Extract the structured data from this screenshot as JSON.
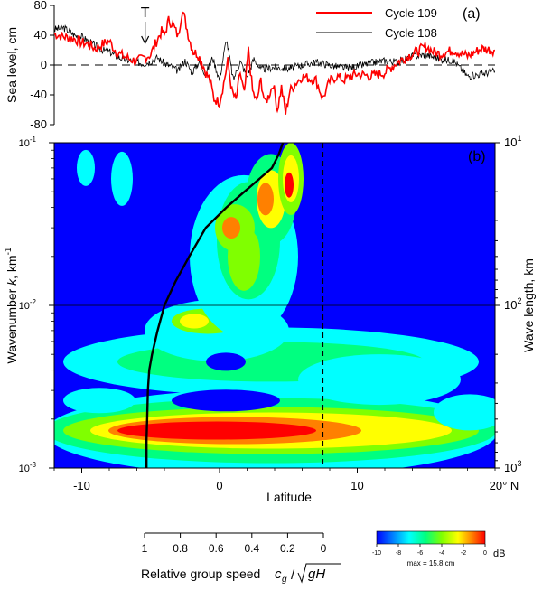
{
  "chart_data": [
    {
      "type": "line",
      "panel_label": "(a)",
      "ylabel": "Sea level, cm",
      "yticks": [
        "80",
        "40",
        "0",
        "-40",
        "-80"
      ],
      "ylim": [
        -80,
        80
      ],
      "xlim": [
        -12,
        20
      ],
      "annotation": "T",
      "annotation_x": -5.4,
      "legend_position": "top-right",
      "series": [
        {
          "name": "Cycle 109",
          "color": "#ff0000",
          "x": [
            -12,
            -11.3,
            -10.5,
            -10,
            -9.5,
            -9,
            -8.5,
            -8,
            -7.5,
            -7,
            -6.5,
            -6,
            -5.5,
            -5,
            -4.5,
            -4.2,
            -4,
            -3.7,
            -3.4,
            -3,
            -2.7,
            -2.5,
            -2.2,
            -1.9,
            -1.6,
            -1.3,
            -1,
            -0.7,
            -0.4,
            0,
            0.3,
            0.6,
            0.9,
            1.2,
            1.5,
            1.8,
            2.1,
            2.4,
            2.7,
            3,
            3.3,
            3.6,
            3.9,
            4.2,
            4.5,
            4.8,
            5.1,
            5.5,
            6,
            6.5,
            7,
            7.5,
            8,
            8.5,
            9,
            10,
            11,
            12,
            13,
            14,
            15,
            15.5,
            16,
            17,
            18,
            19,
            20
          ],
          "y": [
            42,
            38,
            35,
            30,
            28,
            22,
            28,
            32,
            18,
            12,
            8,
            5,
            10,
            14,
            35,
            45,
            40,
            60,
            55,
            38,
            75,
            60,
            35,
            18,
            15,
            5,
            -10,
            -20,
            -45,
            -50,
            -25,
            5,
            -35,
            -48,
            -10,
            -40,
            20,
            -35,
            -50,
            -20,
            -52,
            -40,
            -25,
            -60,
            -30,
            -65,
            -35,
            -25,
            -15,
            -18,
            -20,
            -45,
            -22,
            -15,
            -20,
            -12,
            -15,
            -10,
            5,
            15,
            25,
            18,
            15,
            20,
            12,
            22,
            20
          ]
        },
        {
          "name": "Cycle 108",
          "color": "#000000",
          "x": [
            -12,
            -11.3,
            -10.5,
            -10,
            -9.5,
            -9,
            -8.5,
            -8,
            -7.5,
            -7,
            -6.5,
            -6,
            -5.5,
            -5,
            -4.5,
            -4,
            -3.5,
            -3,
            -2.5,
            -2,
            -1.5,
            -1,
            -0.5,
            0,
            0.5,
            1,
            1.5,
            2,
            2.5,
            3,
            4,
            5,
            6,
            7,
            8,
            9,
            10,
            11,
            12,
            13,
            14,
            15,
            16,
            17,
            18,
            19,
            20
          ],
          "y": [
            48,
            50,
            40,
            38,
            32,
            26,
            20,
            18,
            12,
            8,
            6,
            4,
            2,
            5,
            10,
            2,
            -2,
            -8,
            6,
            -10,
            4,
            -12,
            10,
            -20,
            35,
            -20,
            5,
            -15,
            8,
            -6,
            -3,
            -5,
            0,
            4,
            0,
            -4,
            -2,
            3,
            6,
            4,
            12,
            14,
            8,
            6,
            -15,
            -12,
            -8
          ]
        }
      ]
    },
    {
      "type": "heatmap",
      "panel_label": "(b)",
      "title": "",
      "xlabel": "Latitude",
      "xlim": [
        -12,
        20
      ],
      "xticks": [
        "-10",
        "0",
        "10"
      ],
      "x_end_label": "20° N",
      "ylabel": "Wavenumber k, km⁻¹",
      "ylabel_parts": {
        "pre": "Wavenumber ",
        "var": "k",
        "post": ", km",
        "sup": "-1"
      },
      "ylim": [
        0.001,
        0.1
      ],
      "yscale": "log",
      "yticks_base": "10",
      "yticks_exp": [
        "-1",
        "-2",
        "-3"
      ],
      "y2label": "Wave length, km",
      "y2ticks_base": "10",
      "y2ticks_exp": [
        "1",
        "2",
        "3"
      ],
      "dashed_latitude": 7.5,
      "group_speed_curve": {
        "description_x": "latitude",
        "x": [
          -5.3,
          -5.3,
          -5.25,
          -5.2,
          -5.1,
          -4.9,
          -4.5,
          -4.0,
          -3.2,
          -2.2,
          -1.0,
          0.5,
          1.8,
          2.9,
          3.8,
          4.3,
          4.6
        ],
        "k": [
          0.001,
          0.0015,
          0.002,
          0.003,
          0.004,
          0.005,
          0.007,
          0.01,
          0.014,
          0.02,
          0.03,
          0.04,
          0.05,
          0.06,
          0.07,
          0.085,
          0.1
        ]
      },
      "blobs": [
        {
          "lat": -3,
          "k": 0.0017,
          "amp": 1.0
        },
        {
          "lat": 3.5,
          "k": 0.045,
          "amp": 0.9
        },
        {
          "lat": 5.5,
          "k": 0.06,
          "amp": 0.85
        },
        {
          "lat": 1,
          "k": 0.028,
          "amp": 0.7
        },
        {
          "lat": -4,
          "k": 0.008,
          "amp": 0.75
        },
        {
          "lat": 4,
          "k": 0.015,
          "amp": 0.6
        }
      ]
    }
  ],
  "group_speed_axis": {
    "ticks": [
      "1",
      "0.8",
      "0.6",
      "0.4",
      "0.2",
      "0"
    ],
    "label": "Relative group speed",
    "formula_num": "g",
    "formula_c": "c",
    "formula_den": "gH"
  },
  "colorbar": {
    "ticks": [
      "-10",
      "-8",
      "-6",
      "-4",
      "-2",
      "0"
    ],
    "unit": "dB",
    "max_label": "max = 15.8 cm",
    "colors": [
      "#0000ff",
      "#0080ff",
      "#00ffff",
      "#00ff80",
      "#80ff00",
      "#ffff00",
      "#ff8000",
      "#ff0000"
    ]
  }
}
